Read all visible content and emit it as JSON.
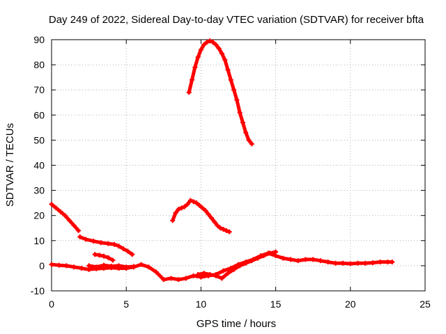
{
  "chart_data": {
    "type": "scatter",
    "title": "Day 249 of 2022, Sidereal Day-to-day VTEC variation (SDTVAR) for receiver bfta",
    "xlabel": "GPS time / hours",
    "ylabel": "SDTVAR / TECUs",
    "xlim": [
      0,
      25
    ],
    "ylim": [
      -10,
      90
    ],
    "xticks": [
      "0",
      "5",
      "10",
      "15",
      "20",
      "25"
    ],
    "yticks": [
      "-10",
      "0",
      "10",
      "20",
      "30",
      "40",
      "50",
      "60",
      "70",
      "80",
      "90"
    ],
    "grid": true,
    "marker_color": "#ff0000",
    "series": [
      {
        "name": "arc-high",
        "x": [
          9.2,
          9.4,
          9.6,
          9.8,
          10.0,
          10.2,
          10.4,
          10.6,
          10.8,
          11.0,
          11.2,
          11.4,
          11.6,
          11.8,
          12.0,
          12.2,
          12.4,
          12.6,
          12.8,
          13.0,
          13.2,
          13.4
        ],
        "y": [
          69,
          74,
          79,
          83,
          86,
          88,
          89,
          89.5,
          89,
          88,
          86.5,
          84.5,
          82,
          78,
          74,
          70,
          66,
          61,
          57,
          53,
          50,
          48.5
        ]
      },
      {
        "name": "arc-mid",
        "x": [
          8.1,
          8.3,
          8.5,
          8.7,
          8.9,
          9.1,
          9.3,
          9.5,
          9.7,
          9.9,
          10.1,
          10.3,
          10.5,
          10.7,
          10.9,
          11.1,
          11.3,
          11.5,
          11.7,
          11.9
        ],
        "y": [
          18,
          21,
          22.5,
          23,
          23.5,
          24.5,
          26,
          25.5,
          25,
          24,
          23,
          22,
          20.5,
          19,
          17.5,
          16,
          15,
          14.5,
          14,
          13.5
        ]
      },
      {
        "name": "arc-start",
        "x": [
          0.0,
          0.3,
          0.6,
          0.9,
          1.2,
          1.5,
          1.8
        ],
        "y": [
          24.5,
          23,
          21.5,
          20,
          18,
          16,
          14
        ]
      },
      {
        "name": "arc-mid-decline",
        "x": [
          1.9,
          2.3,
          2.8,
          3.3,
          3.8,
          4.2,
          4.5,
          4.8,
          5.1,
          5.4
        ],
        "y": [
          11.5,
          10.5,
          9.8,
          9.2,
          8.8,
          8.5,
          7.8,
          6.8,
          5.8,
          4.5
        ]
      },
      {
        "name": "arc-short",
        "x": [
          2.9,
          3.2,
          3.5,
          3.8,
          4.1
        ],
        "y": [
          4.5,
          4.2,
          3.8,
          3.2,
          2.2
        ]
      },
      {
        "name": "arc-low",
        "x": [
          0.0,
          0.5,
          1.0,
          1.5,
          2.0,
          2.5,
          3.0,
          3.5,
          4.0,
          4.5,
          5.0,
          5.5,
          6.0,
          6.5,
          7.0,
          7.5,
          8.0,
          8.5,
          9.0,
          9.5,
          10.0,
          10.5,
          11.0,
          11.5,
          12.0,
          12.5,
          13.0,
          13.5,
          14.0,
          14.5,
          15.0,
          15.5,
          16.0,
          16.5,
          17.0,
          17.5,
          18.0,
          18.5,
          19.0,
          19.5,
          20.0,
          20.5,
          21.0,
          21.5,
          22.0,
          22.5,
          22.8
        ],
        "y": [
          0.5,
          0.2,
          0,
          -0.5,
          -1,
          -1.5,
          -1.2,
          -1,
          -0.8,
          -1,
          -1,
          -0.5,
          0.5,
          -0.5,
          -2.5,
          -5.5,
          -5,
          -5.5,
          -5,
          -4,
          -4.5,
          -4,
          -3.5,
          -2,
          -1,
          0.5,
          1.5,
          2.5,
          4,
          5,
          4,
          3,
          2.5,
          2,
          2.5,
          2.5,
          2,
          1.5,
          1,
          1,
          0.8,
          1,
          1,
          1.2,
          1.5,
          1.5,
          1.5
        ]
      },
      {
        "name": "arc-low-b",
        "x": [
          2.5,
          3.0,
          3.5,
          4.0,
          4.5,
          5.0,
          5.5
        ],
        "y": [
          0,
          -0.5,
          0.2,
          -0.2,
          0,
          -0.5,
          -0.3
        ]
      },
      {
        "name": "arc-low-c",
        "x": [
          9.8,
          10.2,
          10.6,
          11.0,
          11.4,
          11.8,
          12.2,
          12.6,
          13.0,
          13.4,
          13.8,
          14.2,
          14.6,
          15.0
        ],
        "y": [
          -3.5,
          -3,
          -3.5,
          -4,
          -5,
          -3,
          -1.5,
          0,
          1,
          2,
          3,
          4,
          5,
          5.5
        ]
      }
    ]
  }
}
